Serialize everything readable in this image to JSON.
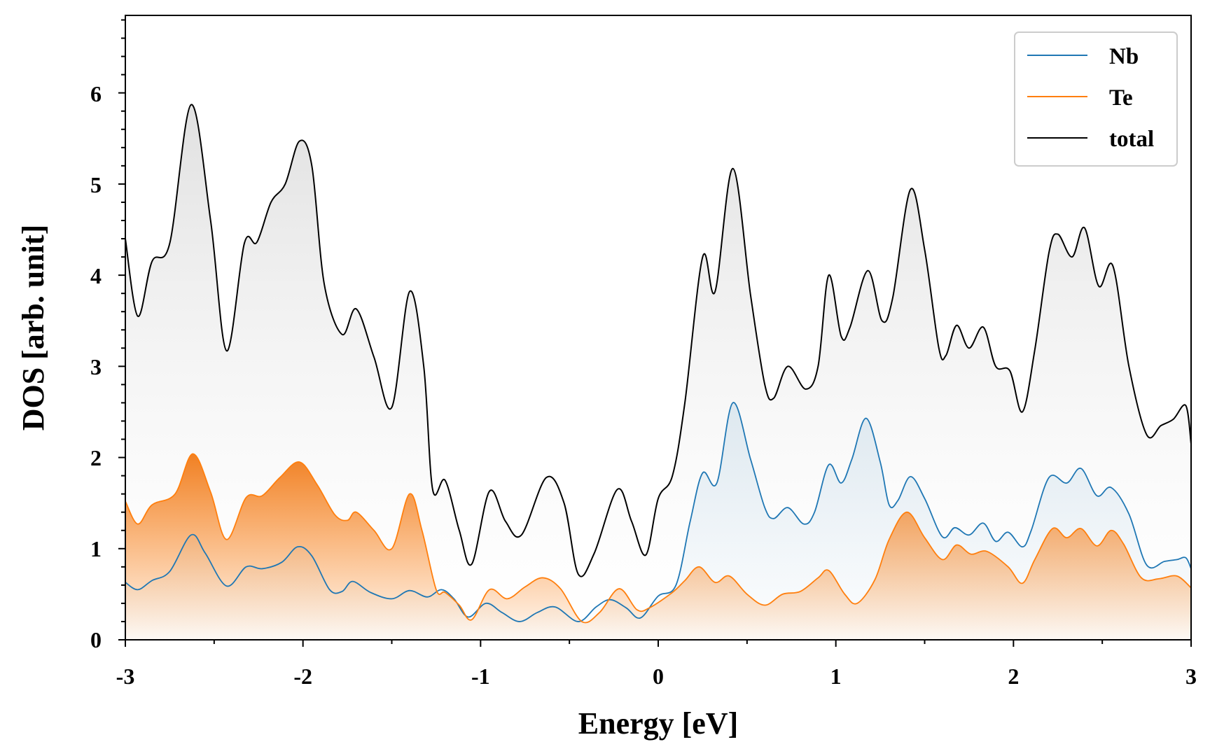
{
  "chart_data": {
    "type": "area",
    "title": "",
    "xlabel": "Energy [eV]",
    "ylabel": "DOS [arb. unit]",
    "xlim": [
      -3,
      3
    ],
    "ylim": [
      0,
      6.85
    ],
    "x_ticks": [
      "-3",
      "-2",
      "-1",
      "0",
      "1",
      "2",
      "3"
    ],
    "y_ticks": [
      "0",
      "1",
      "2",
      "3",
      "4",
      "5",
      "6"
    ],
    "grid": false,
    "legend_position": "top-right",
    "series": [
      {
        "name": "Nb",
        "color": "#1f77b4",
        "points": [
          [
            -3.0,
            0.63
          ],
          [
            -2.93,
            0.55
          ],
          [
            -2.85,
            0.65
          ],
          [
            -2.75,
            0.75
          ],
          [
            -2.63,
            1.15
          ],
          [
            -2.55,
            0.95
          ],
          [
            -2.43,
            0.59
          ],
          [
            -2.32,
            0.8
          ],
          [
            -2.23,
            0.78
          ],
          [
            -2.12,
            0.85
          ],
          [
            -2.03,
            1.02
          ],
          [
            -1.95,
            0.92
          ],
          [
            -1.85,
            0.55
          ],
          [
            -1.78,
            0.53
          ],
          [
            -1.72,
            0.64
          ],
          [
            -1.62,
            0.52
          ],
          [
            -1.5,
            0.45
          ],
          [
            -1.4,
            0.54
          ],
          [
            -1.3,
            0.47
          ],
          [
            -1.22,
            0.55
          ],
          [
            -1.15,
            0.45
          ],
          [
            -1.07,
            0.25
          ],
          [
            -0.97,
            0.4
          ],
          [
            -0.88,
            0.3
          ],
          [
            -0.78,
            0.2
          ],
          [
            -0.68,
            0.3
          ],
          [
            -0.58,
            0.36
          ],
          [
            -0.45,
            0.2
          ],
          [
            -0.35,
            0.36
          ],
          [
            -0.27,
            0.44
          ],
          [
            -0.18,
            0.35
          ],
          [
            -0.1,
            0.24
          ],
          [
            0.0,
            0.48
          ],
          [
            0.1,
            0.6
          ],
          [
            0.18,
            1.3
          ],
          [
            0.25,
            1.83
          ],
          [
            0.33,
            1.72
          ],
          [
            0.42,
            2.6
          ],
          [
            0.52,
            1.98
          ],
          [
            0.6,
            1.45
          ],
          [
            0.65,
            1.33
          ],
          [
            0.73,
            1.45
          ],
          [
            0.82,
            1.27
          ],
          [
            0.88,
            1.4
          ],
          [
            0.96,
            1.92
          ],
          [
            1.03,
            1.72
          ],
          [
            1.09,
            1.98
          ],
          [
            1.17,
            2.43
          ],
          [
            1.25,
            1.95
          ],
          [
            1.3,
            1.48
          ],
          [
            1.35,
            1.53
          ],
          [
            1.42,
            1.79
          ],
          [
            1.5,
            1.55
          ],
          [
            1.6,
            1.13
          ],
          [
            1.67,
            1.23
          ],
          [
            1.75,
            1.15
          ],
          [
            1.83,
            1.28
          ],
          [
            1.9,
            1.08
          ],
          [
            1.97,
            1.18
          ],
          [
            2.05,
            1.02
          ],
          [
            2.1,
            1.2
          ],
          [
            2.2,
            1.78
          ],
          [
            2.3,
            1.72
          ],
          [
            2.38,
            1.88
          ],
          [
            2.47,
            1.58
          ],
          [
            2.55,
            1.67
          ],
          [
            2.65,
            1.38
          ],
          [
            2.75,
            0.82
          ],
          [
            2.85,
            0.86
          ],
          [
            2.92,
            0.88
          ],
          [
            2.97,
            0.9
          ],
          [
            3.0,
            0.78
          ]
        ]
      },
      {
        "name": "Te",
        "color": "#ff7f0e",
        "points": [
          [
            -3.0,
            1.52
          ],
          [
            -2.93,
            1.27
          ],
          [
            -2.85,
            1.48
          ],
          [
            -2.72,
            1.6
          ],
          [
            -2.62,
            2.04
          ],
          [
            -2.52,
            1.62
          ],
          [
            -2.43,
            1.1
          ],
          [
            -2.32,
            1.56
          ],
          [
            -2.23,
            1.58
          ],
          [
            -2.13,
            1.78
          ],
          [
            -2.02,
            1.95
          ],
          [
            -1.92,
            1.7
          ],
          [
            -1.82,
            1.37
          ],
          [
            -1.75,
            1.31
          ],
          [
            -1.7,
            1.4
          ],
          [
            -1.6,
            1.2
          ],
          [
            -1.5,
            1.0
          ],
          [
            -1.4,
            1.6
          ],
          [
            -1.33,
            1.2
          ],
          [
            -1.25,
            0.55
          ],
          [
            -1.2,
            0.52
          ],
          [
            -1.12,
            0.38
          ],
          [
            -1.05,
            0.22
          ],
          [
            -0.95,
            0.55
          ],
          [
            -0.85,
            0.45
          ],
          [
            -0.75,
            0.58
          ],
          [
            -0.65,
            0.68
          ],
          [
            -0.55,
            0.56
          ],
          [
            -0.43,
            0.2
          ],
          [
            -0.33,
            0.3
          ],
          [
            -0.22,
            0.56
          ],
          [
            -0.12,
            0.33
          ],
          [
            -0.05,
            0.35
          ],
          [
            0.08,
            0.52
          ],
          [
            0.15,
            0.65
          ],
          [
            0.23,
            0.8
          ],
          [
            0.32,
            0.63
          ],
          [
            0.4,
            0.7
          ],
          [
            0.5,
            0.5
          ],
          [
            0.6,
            0.38
          ],
          [
            0.7,
            0.5
          ],
          [
            0.8,
            0.53
          ],
          [
            0.9,
            0.68
          ],
          [
            0.96,
            0.76
          ],
          [
            1.05,
            0.5
          ],
          [
            1.12,
            0.4
          ],
          [
            1.22,
            0.66
          ],
          [
            1.3,
            1.1
          ],
          [
            1.4,
            1.4
          ],
          [
            1.5,
            1.12
          ],
          [
            1.6,
            0.88
          ],
          [
            1.68,
            1.04
          ],
          [
            1.76,
            0.94
          ],
          [
            1.85,
            0.97
          ],
          [
            1.97,
            0.8
          ],
          [
            2.05,
            0.62
          ],
          [
            2.12,
            0.88
          ],
          [
            2.22,
            1.22
          ],
          [
            2.3,
            1.12
          ],
          [
            2.38,
            1.22
          ],
          [
            2.47,
            1.03
          ],
          [
            2.55,
            1.2
          ],
          [
            2.62,
            1.05
          ],
          [
            2.72,
            0.68
          ],
          [
            2.82,
            0.67
          ],
          [
            2.92,
            0.7
          ],
          [
            3.0,
            0.57
          ]
        ]
      },
      {
        "name": "total",
        "color": "#000000",
        "points": [
          [
            -3.0,
            4.4
          ],
          [
            -2.93,
            3.55
          ],
          [
            -2.85,
            4.15
          ],
          [
            -2.75,
            4.35
          ],
          [
            -2.63,
            5.87
          ],
          [
            -2.52,
            4.6
          ],
          [
            -2.43,
            3.17
          ],
          [
            -2.33,
            4.35
          ],
          [
            -2.26,
            4.36
          ],
          [
            -2.18,
            4.8
          ],
          [
            -2.1,
            5.0
          ],
          [
            -2.02,
            5.47
          ],
          [
            -1.95,
            5.2
          ],
          [
            -1.88,
            3.9
          ],
          [
            -1.78,
            3.35
          ],
          [
            -1.7,
            3.63
          ],
          [
            -1.6,
            3.1
          ],
          [
            -1.5,
            2.55
          ],
          [
            -1.4,
            3.82
          ],
          [
            -1.32,
            3.0
          ],
          [
            -1.27,
            1.65
          ],
          [
            -1.2,
            1.75
          ],
          [
            -1.12,
            1.2
          ],
          [
            -1.05,
            0.83
          ],
          [
            -0.95,
            1.63
          ],
          [
            -0.86,
            1.3
          ],
          [
            -0.77,
            1.15
          ],
          [
            -0.63,
            1.78
          ],
          [
            -0.53,
            1.5
          ],
          [
            -0.45,
            0.72
          ],
          [
            -0.36,
            0.95
          ],
          [
            -0.23,
            1.65
          ],
          [
            -0.15,
            1.3
          ],
          [
            -0.07,
            0.93
          ],
          [
            0.0,
            1.55
          ],
          [
            0.08,
            1.8
          ],
          [
            0.15,
            2.6
          ],
          [
            0.25,
            4.2
          ],
          [
            0.32,
            3.82
          ],
          [
            0.42,
            5.17
          ],
          [
            0.52,
            3.78
          ],
          [
            0.6,
            2.8
          ],
          [
            0.65,
            2.65
          ],
          [
            0.73,
            3.0
          ],
          [
            0.83,
            2.75
          ],
          [
            0.9,
            3.0
          ],
          [
            0.96,
            4.0
          ],
          [
            1.03,
            3.33
          ],
          [
            1.08,
            3.43
          ],
          [
            1.18,
            4.05
          ],
          [
            1.26,
            3.5
          ],
          [
            1.32,
            3.75
          ],
          [
            1.42,
            4.94
          ],
          [
            1.5,
            4.28
          ],
          [
            1.58,
            3.2
          ],
          [
            1.62,
            3.12
          ],
          [
            1.68,
            3.45
          ],
          [
            1.75,
            3.2
          ],
          [
            1.83,
            3.43
          ],
          [
            1.9,
            3.0
          ],
          [
            1.98,
            2.95
          ],
          [
            2.05,
            2.5
          ],
          [
            2.12,
            3.18
          ],
          [
            2.2,
            4.25
          ],
          [
            2.25,
            4.45
          ],
          [
            2.33,
            4.2
          ],
          [
            2.4,
            4.52
          ],
          [
            2.48,
            3.88
          ],
          [
            2.56,
            4.1
          ],
          [
            2.65,
            3.0
          ],
          [
            2.75,
            2.25
          ],
          [
            2.83,
            2.35
          ],
          [
            2.9,
            2.42
          ],
          [
            2.97,
            2.57
          ],
          [
            3.0,
            2.15
          ]
        ]
      }
    ]
  }
}
